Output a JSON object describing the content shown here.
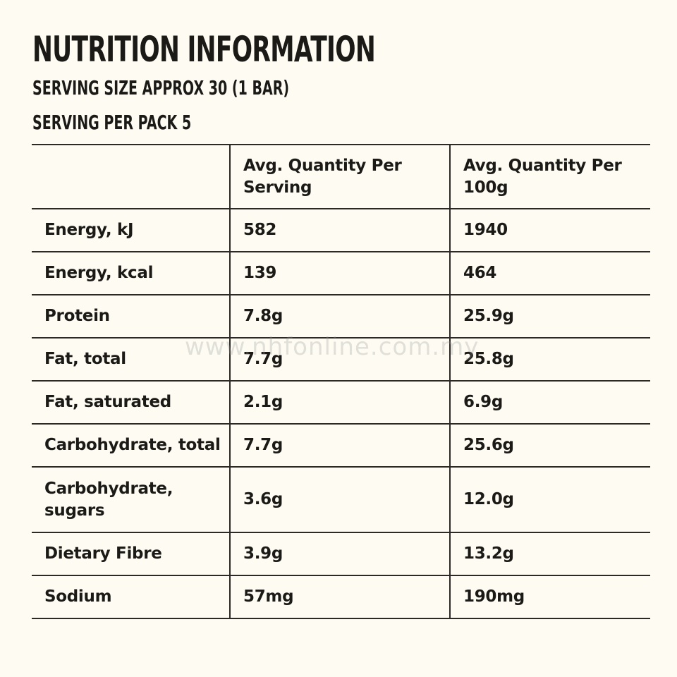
{
  "header": {
    "title": "NUTRITION INFORMATION",
    "serving_size": "SERVING SIZE APPROX 30 (1 BAR)",
    "servings_per_pack": "SERVING PER PACK 5"
  },
  "table": {
    "columns": [
      "",
      "Avg. Quantity Per Serving",
      "Avg. Quantity Per 100g"
    ],
    "rows": [
      {
        "nutrient": "Energy, kJ",
        "per_serving": "582",
        "per_100g": "1940"
      },
      {
        "nutrient": "Energy, kcal",
        "per_serving": "139",
        "per_100g": "464"
      },
      {
        "nutrient": "Protein",
        "per_serving": "7.8g",
        "per_100g": "25.9g"
      },
      {
        "nutrient": "Fat, total",
        "per_serving": "7.7g",
        "per_100g": "25.8g"
      },
      {
        "nutrient": "Fat, saturated",
        "per_serving": "2.1g",
        "per_100g": "6.9g"
      },
      {
        "nutrient": "Carbohydrate, total",
        "per_serving": "7.7g",
        "per_100g": "25.6g"
      },
      {
        "nutrient": "Carbohydrate, sugars",
        "per_serving": "3.6g",
        "per_100g": "12.0g"
      },
      {
        "nutrient": "Dietary Fibre",
        "per_serving": "3.9g",
        "per_100g": "13.2g"
      },
      {
        "nutrient": "Sodium",
        "per_serving": "57mg",
        "per_100g": "190mg"
      }
    ]
  },
  "watermark": "www.nhfonline.com.my"
}
